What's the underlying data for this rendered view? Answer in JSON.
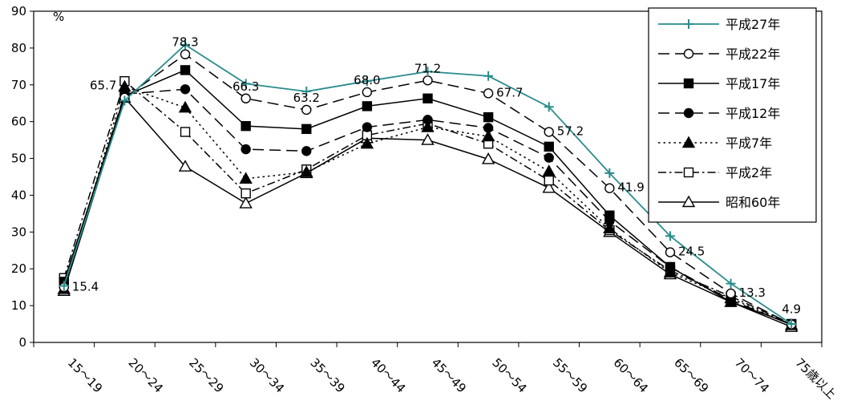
{
  "chart_data": {
    "type": "line",
    "ylabel": "%",
    "ylim": [
      0,
      90
    ],
    "yticks": [
      0,
      10,
      20,
      30,
      40,
      50,
      60,
      70,
      80,
      90
    ],
    "grid": false,
    "legend_position": "top-right",
    "categories": [
      "15～19",
      "20～24",
      "25～29",
      "30～34",
      "35～39",
      "40～44",
      "45～49",
      "50～54",
      "55～59",
      "60～64",
      "65～69",
      "70～74",
      "75歳以上"
    ],
    "series": [
      {
        "name": "平成27年",
        "marker": "plus",
        "line": "solid",
        "color": "#2a8c8c",
        "values": [
          15.4,
          65.7,
          80.9,
          70.3,
          68.2,
          71.0,
          73.6,
          72.4,
          64.0,
          46.0,
          28.9,
          16.0,
          5.0
        ],
        "labels": [
          "15.4",
          "65.7",
          "",
          "",
          "",
          "",
          "",
          "",
          "",
          "",
          "",
          "",
          ""
        ]
      },
      {
        "name": "平成22年",
        "marker": "circle-open",
        "line": "longdash",
        "color": "#000000",
        "values": [
          15.0,
          66.5,
          78.3,
          66.3,
          63.2,
          68.0,
          71.2,
          67.7,
          57.2,
          41.9,
          24.5,
          13.3,
          4.9
        ],
        "labels": [
          "",
          "",
          "78.3",
          "66.3",
          "63.2",
          "68.0",
          "71.2",
          "67.7",
          "57.2",
          "41.9",
          "24.5",
          "13.3",
          "4.9"
        ]
      },
      {
        "name": "平成17年",
        "marker": "square-filled",
        "line": "solid",
        "color": "#000000",
        "values": [
          16.5,
          67.0,
          74.0,
          58.8,
          58.0,
          64.2,
          66.3,
          61.2,
          53.2,
          34.5,
          20.5,
          11.0,
          5.0
        ],
        "labels": [
          "",
          "",
          "",
          "",
          "",
          "",
          "",
          "",
          "",
          "",
          "",
          "",
          ""
        ]
      },
      {
        "name": "平成12年",
        "marker": "circle-filled",
        "line": "longdash",
        "color": "#000000",
        "values": [
          15.5,
          67.5,
          68.8,
          52.5,
          52.0,
          58.5,
          60.5,
          58.3,
          50.2,
          33.0,
          20.5,
          11.5,
          4.8
        ],
        "labels": [
          "",
          "",
          "",
          "",
          "",
          "",
          "",
          "",
          "",
          "",
          "",
          "",
          ""
        ]
      },
      {
        "name": "平成7年",
        "marker": "triangle-filled",
        "line": "dotted",
        "color": "#000000",
        "values": [
          14.5,
          69.5,
          63.8,
          44.5,
          46.3,
          54.0,
          58.5,
          56.0,
          46.5,
          31.0,
          19.0,
          12.0,
          4.7
        ],
        "labels": [
          "",
          "",
          "",
          "",
          "",
          "",
          "",
          "",
          "",
          "",
          "",
          "",
          ""
        ]
      },
      {
        "name": "平成2年",
        "marker": "square-open",
        "line": "dashdot",
        "color": "#000000",
        "values": [
          17.5,
          71.0,
          57.2,
          40.5,
          47.0,
          56.3,
          59.5,
          54.0,
          44.0,
          30.5,
          19.5,
          12.5,
          5.0
        ],
        "labels": [
          "",
          "",
          "",
          "",
          "",
          "",
          "",
          "",
          "",
          "",
          "",
          "",
          ""
        ]
      },
      {
        "name": "昭和60年",
        "marker": "triangle-open",
        "line": "solid",
        "color": "#000000",
        "values": [
          14.0,
          66.5,
          47.8,
          37.8,
          46.0,
          55.5,
          55.0,
          49.8,
          42.0,
          30.0,
          18.5,
          11.0,
          4.2
        ],
        "labels": [
          "",
          "",
          "",
          "",
          "",
          "",
          "",
          "",
          "",
          "",
          "",
          "",
          ""
        ]
      }
    ]
  }
}
